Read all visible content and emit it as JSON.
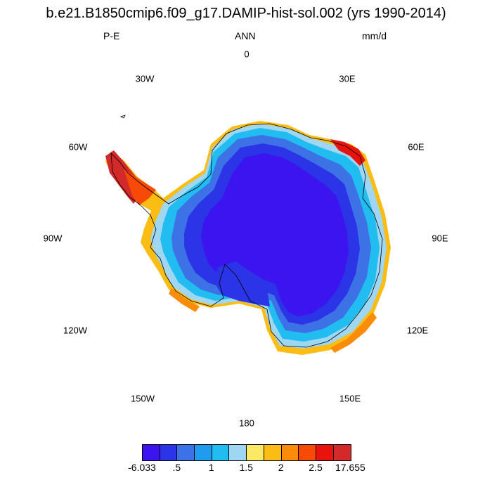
{
  "title": "b.e21.B1850cmip6.f09_g17.DAMIP-hist-sol.002 (yrs 1990-2014)",
  "left_string": "P-E",
  "center_string": "ANN",
  "right_string": "mm/d",
  "longitude_labels": {
    "lon_0": "0",
    "lon_30e": "30E",
    "lon_60e": "60E",
    "lon_90e": "90E",
    "lon_120e": "120E",
    "lon_150e": "150E",
    "lon_180": "180",
    "lon_150w": "150W",
    "lon_120w": "120W",
    "lon_90w": "90W",
    "lon_60w": "60W",
    "lon_30w": "30W"
  },
  "colorbar": {
    "colors": [
      "#3b14ef",
      "#2b34e6",
      "#3c72e6",
      "#1f9bef",
      "#22bdf0",
      "#9fd6f2",
      "#fbe864",
      "#fbbd14",
      "#fb8c0a",
      "#f74a06",
      "#e8130c",
      "#d22a2a"
    ],
    "labels": [
      "-6.033",
      ".5",
      "1",
      "1.5",
      "2",
      "2.5",
      "17.655"
    ]
  },
  "chart_data": {
    "type": "heatmap",
    "projection": "south polar stereographic",
    "variable": "P-E",
    "season": "ANN",
    "units": "mm/d",
    "range": [
      -6.033,
      17.655
    ],
    "contour_levels": [
      0.5,
      1,
      1.5,
      2,
      2.5
    ]
  }
}
